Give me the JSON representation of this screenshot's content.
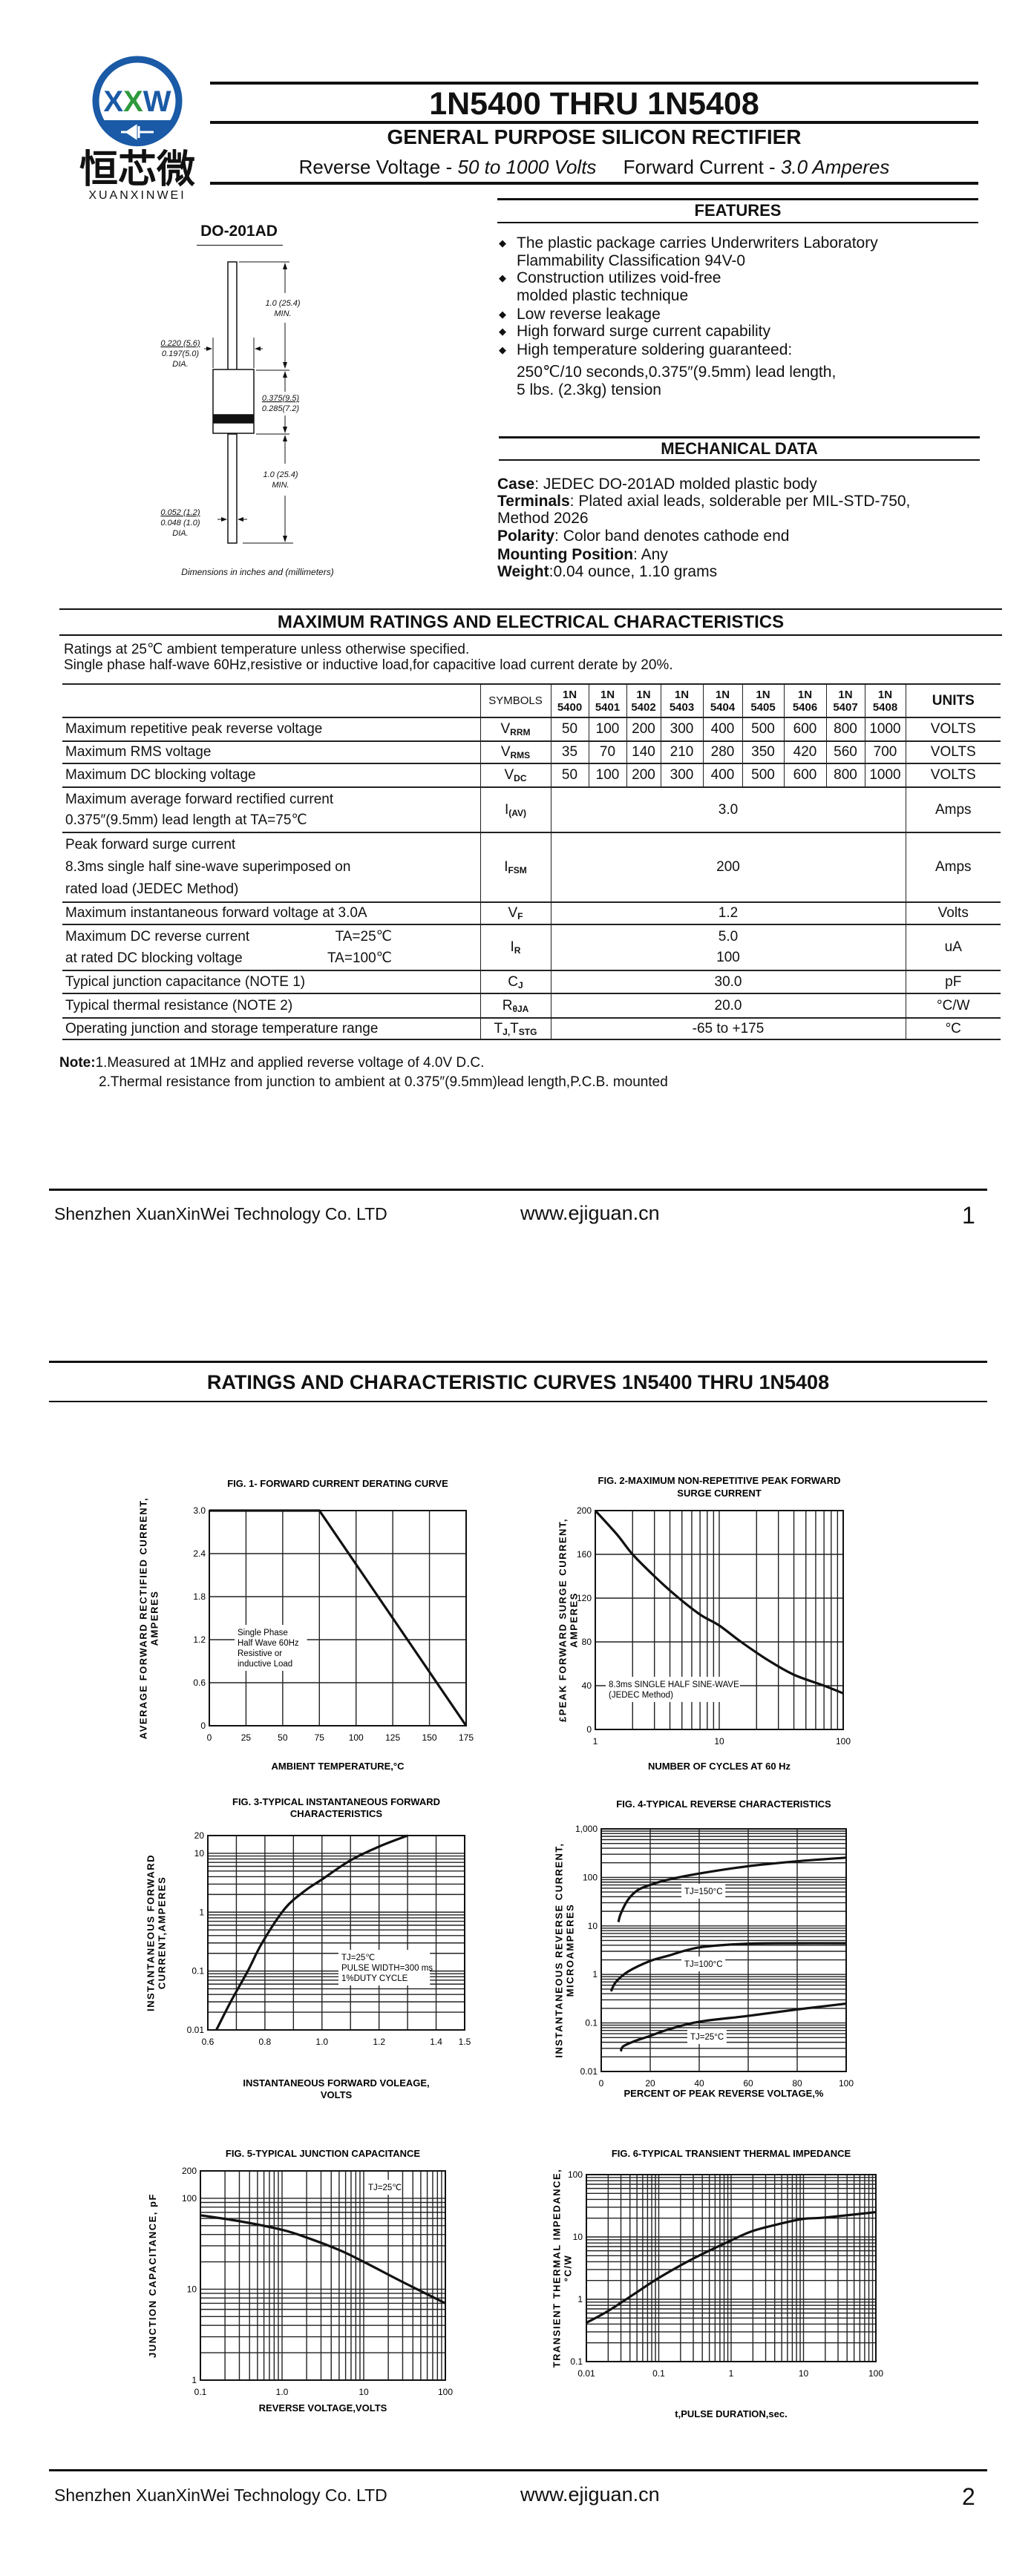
{
  "logo": {
    "mark": "XXW",
    "chinese": "恒芯微",
    "brand": "XUANXINWEI",
    "ring_color": "#1a5aa6",
    "accent_color": "#2e9a3c"
  },
  "header": {
    "title": "1N5400 THRU 1N5408",
    "subtitle": "GENERAL PURPOSE SILICON RECTIFIER",
    "rv_label": "Reverse Voltage - ",
    "rv_value": "50 to 1000 Volts",
    "fc_label": "Forward Current - ",
    "fc_value": "3.0 Amperes"
  },
  "package": {
    "name": "DO-201AD",
    "dim_lead_top": "1.0 (25.4)",
    "dim_lead_top_min": "MIN.",
    "dim_body_dia_max": "0.220 (5.6)",
    "dim_body_dia_min": "0.197(5.0)",
    "dim_body_dia_label": "DIA.",
    "dim_body_len_max": "0.375(9.5)",
    "dim_body_len_min": "0.285(7.2)",
    "dim_lead_bottom": "1.0 (25.4)",
    "dim_lead_bottom_min": "MIN.",
    "dim_lead_dia_max": "0.052 (1.2)",
    "dim_lead_dia_min": "0.048 (1.0)",
    "dim_lead_dia_label": "DIA.",
    "caption": "Dimensions in inches and (millimeters)"
  },
  "features": {
    "title": "FEATURES",
    "items": [
      {
        "lines": [
          "The plastic package carries Underwriters Laboratory",
          "Flammability Classification 94V-0"
        ]
      },
      {
        "lines": [
          "Construction utilizes void-free",
          "molded plastic technique"
        ]
      },
      {
        "lines": [
          "Low reverse leakage"
        ]
      },
      {
        "lines": [
          "High forward surge current capability"
        ]
      },
      {
        "lines": [
          "High temperature soldering guaranteed:",
          "250℃/10 seconds,0.375″(9.5mm) lead length,",
          "5 lbs. (2.3kg) tension"
        ]
      }
    ]
  },
  "mechanical": {
    "title": "MECHANICAL DATA",
    "items": [
      {
        "label": "Case",
        "text": ": JEDEC DO-201AD molded plastic body"
      },
      {
        "label": "Terminals",
        "text": ": Plated axial leads, solderable per MIL-STD-750,",
        "text2": "Method 2026"
      },
      {
        "label": "Polarity",
        "text": ": Color band denotes cathode end"
      },
      {
        "label": "Mounting Position",
        "text": ": Any"
      },
      {
        "label": "Weight",
        "text": ":0.04 ounce, 1.10 grams"
      }
    ]
  },
  "ratings": {
    "title": "MAXIMUM RATINGS AND ELECTRICAL CHARACTERISTICS",
    "intro1": "Ratings at 25℃ ambient temperature unless otherwise specified.",
    "intro2": "Single phase half-wave 60Hz,resistive or inductive load,for capacitive load current derate by 20%.",
    "table": {
      "symbols_header": "SYMBOLS",
      "units_header": "UNITS",
      "parts": [
        [
          "1N",
          "5400"
        ],
        [
          "1N",
          "5401"
        ],
        [
          "1N",
          "5402"
        ],
        [
          "1N",
          "5403"
        ],
        [
          "1N",
          "5404"
        ],
        [
          "1N",
          "5405"
        ],
        [
          "1N",
          "5406"
        ],
        [
          "1N",
          "5407"
        ],
        [
          "1N",
          "5408"
        ]
      ],
      "rows": [
        {
          "desc": [
            "Maximum repetitive peak reverse voltage"
          ],
          "sym": [
            [
              "V",
              "RRM"
            ]
          ],
          "values": [
            "50",
            "100",
            "200",
            "300",
            "400",
            "500",
            "600",
            "800",
            "1000"
          ],
          "unit": "VOLTS"
        },
        {
          "desc": [
            "Maximum RMS voltage"
          ],
          "sym": [
            [
              "V",
              "RMS"
            ]
          ],
          "values": [
            "35",
            "70",
            "140",
            "210",
            "280",
            "350",
            "420",
            "560",
            "700"
          ],
          "unit": "VOLTS"
        },
        {
          "desc": [
            "Maximum DC blocking voltage"
          ],
          "sym": [
            [
              "V",
              "DC"
            ]
          ],
          "values": [
            "50",
            "100",
            "200",
            "300",
            "400",
            "500",
            "600",
            "800",
            "1000"
          ],
          "unit": "VOLTS"
        },
        {
          "desc": [
            "Maximum average forward rectified current",
            "0.375″(9.5mm) lead length at TA=75℃"
          ],
          "sym": [
            [
              "I",
              "(AV)"
            ]
          ],
          "value": [
            "3.0"
          ],
          "unit": "Amps"
        },
        {
          "desc": [
            "Peak forward surge current",
            "8.3ms single half sine-wave superimposed on",
            "rated load (JEDEC Method)"
          ],
          "sym": [
            [
              "I",
              "FSM"
            ]
          ],
          "value": [
            "200"
          ],
          "unit": "Amps"
        },
        {
          "desc": [
            "Maximum instantaneous forward voltage at 3.0A"
          ],
          "sym": [
            [
              "V",
              "F"
            ]
          ],
          "value": [
            "1.2"
          ],
          "unit": "Volts"
        },
        {
          "desc": [
            "Maximum DC reverse current",
            "at rated DC blocking voltage"
          ],
          "cond": [
            "TA=25℃",
            "TA=100℃"
          ],
          "sym": [
            [
              "I",
              "R"
            ]
          ],
          "value": [
            "5.0",
            "100"
          ],
          "unit": "uA"
        },
        {
          "desc": [
            "Typical junction capacitance (NOTE 1)"
          ],
          "sym": [
            [
              "C",
              "J"
            ]
          ],
          "value": [
            "30.0"
          ],
          "unit": "pF"
        },
        {
          "desc": [
            "Typical thermal resistance (NOTE 2)"
          ],
          "sym": [
            [
              "R",
              "θJA"
            ]
          ],
          "value": [
            "20.0"
          ],
          "unit": "°C/W"
        },
        {
          "desc": [
            "Operating junction and storage temperature range"
          ],
          "sym": [
            [
              "T",
              "J,"
            ],
            [
              "T",
              "STG"
            ]
          ],
          "value": [
            "-65 to +175"
          ],
          "unit": "°C"
        }
      ]
    },
    "note_label": "Note:",
    "note1": "1.Measured at 1MHz and applied reverse voltage of 4.0V D.C.",
    "note2": "2.Thermal resistance from junction to ambient  at 0.375″(9.5mm)lead length,P.C.B. mounted"
  },
  "footer": {
    "company": "Shenzhen XuanXinWei Technology Co. LTD",
    "website": "www.ejiguan.cn",
    "page1": "1",
    "page2": "2"
  },
  "curves_title": "RATINGS AND CHARACTERISTIC CURVES 1N5400 THRU 1N5408",
  "chart_data": [
    {
      "type": "line",
      "title": [
        "FIG. 1- FORWARD CURRENT DERATING CURVE"
      ],
      "xlabel": [
        "AMBIENT TEMPERATURE,°C"
      ],
      "ylabel": [
        "AVERAGE FORWARD RECTIFIED CURRENT,",
        "AMPERES"
      ],
      "xscale": "linear",
      "yscale": "linear",
      "xlim": [
        0,
        175
      ],
      "ylim": [
        0,
        3.0
      ],
      "grid": true,
      "xticks": [
        0,
        25,
        50,
        75,
        100,
        125,
        150,
        175
      ],
      "xtick_labels": [
        "0",
        "25",
        "50",
        "75",
        "100",
        "125",
        "150",
        "175"
      ],
      "yticks": [
        0,
        0.6,
        1.2,
        1.8,
        2.4,
        3.0
      ],
      "ytick_labels": [
        "0",
        "0.6",
        "1.2",
        "1.8",
        "2.4",
        "3.0"
      ],
      "series": [
        {
          "x": [
            0,
            75,
            175
          ],
          "y": [
            3.0,
            3.0,
            0
          ]
        }
      ],
      "annotations": [
        [
          "Single Phase",
          "Half Wave 60Hz",
          "Resistive or",
          "inductive Load"
        ]
      ]
    },
    {
      "type": "line",
      "title": [
        "FIG. 2-MAXIMUM NON-REPETITIVE PEAK FORWARD",
        "SURGE CURRENT"
      ],
      "xlabel": [
        "NUMBER OF CYCLES AT 60 Hz"
      ],
      "ylabel": [
        "£PEAK  FORWARD SURGE CURRENT,",
        "AMPERES"
      ],
      "xscale": "log",
      "yscale": "linear",
      "xlim": [
        1,
        100
      ],
      "ylim": [
        0,
        200
      ],
      "grid": true,
      "xticks": [
        1,
        10,
        100
      ],
      "xtick_labels": [
        "1",
        "10",
        "100"
      ],
      "yticks": [
        0,
        40,
        80,
        120,
        160,
        200
      ],
      "ytick_labels": [
        "0",
        "40",
        "80",
        "120",
        "160",
        "200"
      ],
      "series": [
        {
          "x": [
            1,
            1.5,
            2,
            3,
            4.5,
            7,
            10,
            15,
            25,
            40,
            70,
            100
          ],
          "y": [
            200,
            178,
            160,
            140,
            122,
            105,
            95,
            80,
            63,
            50,
            40,
            33
          ]
        }
      ],
      "annotations": [
        [
          "8.3ms SINGLE HALF SINE-WAVE",
          "(JEDEC Method)"
        ]
      ]
    },
    {
      "type": "line",
      "title": [
        "FIG. 3-TYPICAL INSTANTANEOUS FORWARD",
        "CHARACTERISTICS"
      ],
      "xlabel": [
        "INSTANTANEOUS FORWARD VOLEAGE,",
        "VOLTS"
      ],
      "ylabel": [
        "INSTANTANEOUS FORWARD",
        "CURRENT,AMPERES"
      ],
      "xscale": "linear",
      "yscale": "log",
      "xlim": [
        0.6,
        1.5
      ],
      "ylim": [
        0.01,
        20
      ],
      "grid": true,
      "xticks": [
        0.6,
        0.8,
        1.0,
        1.2,
        1.4,
        1.5
      ],
      "xtick_labels": [
        "0.6",
        "0.8",
        "1.0",
        "1.2",
        "1.4",
        "1.5"
      ],
      "yticks": [
        0.01,
        0.1,
        1,
        10,
        20
      ],
      "ytick_labels": [
        "0.01",
        "0.1",
        "1",
        "10",
        "20"
      ],
      "series": [
        {
          "x": [
            0.63,
            0.68,
            0.74,
            0.79,
            0.87,
            0.94,
            1.0,
            1.1,
            1.2,
            1.3
          ],
          "y": [
            0.01,
            0.03,
            0.1,
            0.3,
            1.15,
            2.3,
            3.6,
            7.6,
            13,
            20
          ]
        }
      ],
      "annotations": [
        [
          "TJ=25℃",
          "PULSE WIDTH=300 ms",
          "1%DUTY CYCLE"
        ]
      ]
    },
    {
      "type": "line",
      "title": [
        "FIG. 4-TYPICAL REVERSE CHARACTERISTICS"
      ],
      "xlabel": [
        "PERCENT OF PEAK REVERSE VOLTAGE,%"
      ],
      "ylabel": [
        "INSTANTANEOUS REVERSE CURRENT,",
        "MICROAMPERES"
      ],
      "xscale": "linear",
      "yscale": "log",
      "xlim": [
        0,
        100
      ],
      "ylim": [
        0.01,
        1000
      ],
      "grid": true,
      "xticks": [
        0,
        20,
        40,
        60,
        80,
        100
      ],
      "xtick_labels": [
        "0",
        "20",
        "40",
        "60",
        "80",
        "100"
      ],
      "yticks": [
        0.01,
        0.1,
        1,
        10,
        100,
        1000
      ],
      "ytick_labels": [
        "0.01",
        "0.1",
        "1",
        "10",
        "100",
        "1,000"
      ],
      "series": [
        {
          "name": "TJ=150°C",
          "x": [
            7,
            8,
            11,
            15,
            20,
            27,
            40,
            60,
            80,
            100
          ],
          "y": [
            12,
            18,
            35,
            55,
            70,
            89,
            120,
            170,
            215,
            255
          ]
        },
        {
          "name": "TJ=100°C",
          "x": [
            4,
            6,
            11,
            20,
            27,
            40,
            60,
            80,
            100
          ],
          "y": [
            0.45,
            0.7,
            1.15,
            1.9,
            2.4,
            3.6,
            4.3,
            4.4,
            4.4
          ]
        },
        {
          "name": "TJ=25°C",
          "x": [
            8,
            9,
            14,
            19,
            28,
            40,
            60,
            80,
            100
          ],
          "y": [
            0.026,
            0.033,
            0.043,
            0.052,
            0.075,
            0.106,
            0.14,
            0.19,
            0.25
          ]
        }
      ],
      "annotations": [
        [
          "TJ=150°C"
        ],
        [
          "TJ=100°C"
        ],
        [
          "TJ=25°C"
        ]
      ]
    },
    {
      "type": "line",
      "title": [
        "FIG. 5-TYPICAL JUNCTION CAPACITANCE"
      ],
      "xlabel": [
        "REVERSE VOLTAGE,VOLTS"
      ],
      "ylabel": [
        "JUNCTION CAPACITANCE, pF"
      ],
      "xscale": "log",
      "yscale": "log",
      "xlim": [
        0.1,
        100
      ],
      "ylim": [
        1,
        200
      ],
      "grid": true,
      "xticks": [
        0.1,
        1,
        10,
        100
      ],
      "xtick_labels": [
        "0.1",
        "1.0",
        "10",
        "100"
      ],
      "yticks": [
        1,
        10,
        100,
        200
      ],
      "ytick_labels": [
        "1",
        "10",
        "100",
        "200"
      ],
      "series": [
        {
          "x": [
            0.1,
            0.3,
            1,
            2,
            5,
            10,
            30,
            100
          ],
          "y": [
            65,
            56,
            45,
            37,
            27,
            20,
            12,
            7
          ]
        }
      ],
      "annotations": [
        [
          "TJ=25℃"
        ]
      ]
    },
    {
      "type": "line",
      "title": [
        "FIG. 6-TYPICAL TRANSIENT THERMAL IMPEDANCE"
      ],
      "xlabel": [
        "t,PULSE DURATION,sec."
      ],
      "ylabel": [
        "TRANSIENT THERMAL IMPEDANCE,",
        "°C/W"
      ],
      "xscale": "log",
      "yscale": "log",
      "xlim": [
        0.01,
        100
      ],
      "ylim": [
        0.1,
        100
      ],
      "grid": true,
      "xticks": [
        0.01,
        0.1,
        1,
        10,
        100
      ],
      "xtick_labels": [
        "0.01",
        "0.1",
        "1",
        "10",
        "100"
      ],
      "yticks": [
        0.1,
        1,
        10,
        100
      ],
      "ytick_labels": [
        "0.1",
        "1",
        "10",
        "100"
      ],
      "series": [
        {
          "x": [
            0.01,
            0.02,
            0.05,
            0.1,
            0.3,
            1,
            2,
            5,
            10,
            20,
            100
          ],
          "y": [
            0.42,
            0.65,
            1.3,
            2.2,
            4.5,
            8.8,
            12.5,
            16.5,
            19.5,
            20.5,
            25
          ]
        }
      ],
      "annotations": []
    }
  ]
}
